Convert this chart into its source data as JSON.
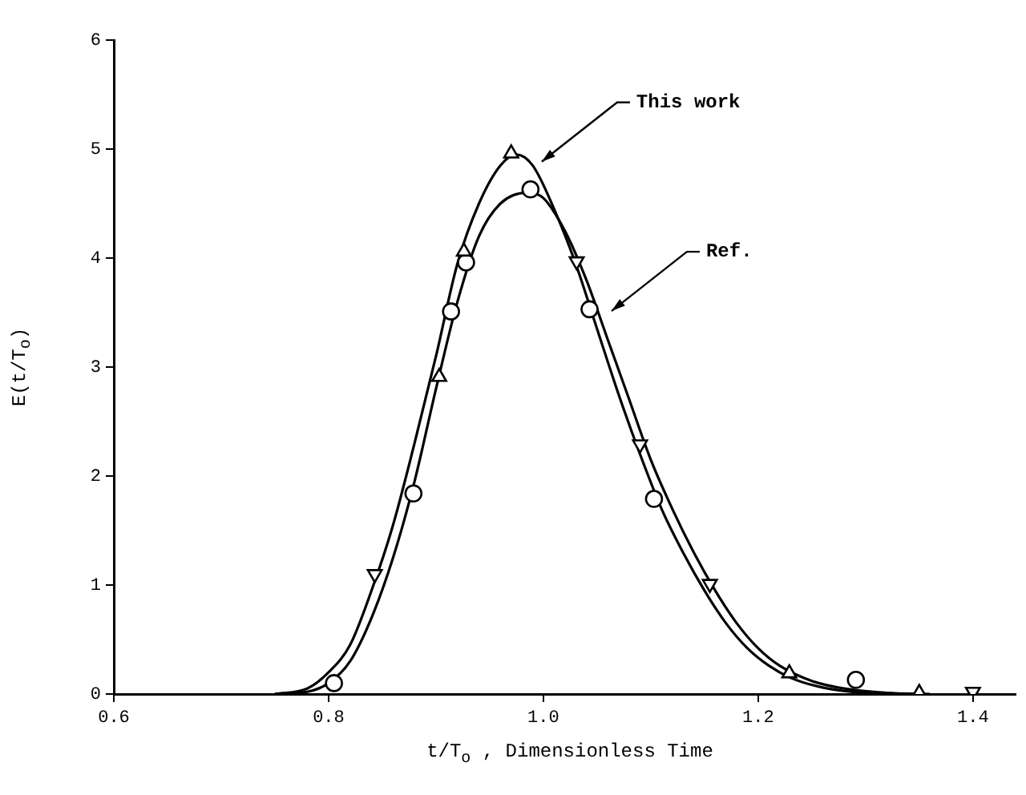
{
  "chart_data": {
    "type": "line",
    "xlabel": "t/T$_{o}$ , Dimensionless Time",
    "ylabel": "E(t/T$_{o}$)",
    "xlim": [
      0.6,
      1.44
    ],
    "xticks": [
      0.6,
      0.8,
      {
        "value": 1,
        "label": "1.0"
      },
      1.2,
      1.4
    ],
    "ylim": [
      0,
      6
    ],
    "yticks": [
      0,
      1,
      2,
      3,
      4,
      5,
      6
    ],
    "grid": false,
    "legend": false,
    "marker": "none",
    "line_style": "solid",
    "series": [
      {
        "type": "line",
        "color": "#000000",
        "x": [
          0.75,
          0.78,
          0.8,
          0.82,
          0.84,
          0.86,
          0.88,
          0.9,
          0.92,
          0.94,
          0.96,
          0.975,
          0.99,
          1.01,
          1.03,
          1.05,
          1.07,
          1.09,
          1.11,
          1.13,
          1.15,
          1.17,
          1.19,
          1.21,
          1.23,
          1.26,
          1.3,
          1.34
        ],
        "values": [
          0,
          0.05,
          0.2,
          0.45,
          0.95,
          1.55,
          2.3,
          3.1,
          3.95,
          4.5,
          4.85,
          4.95,
          4.85,
          4.45,
          3.95,
          3.35,
          2.75,
          2.2,
          1.7,
          1.3,
          0.95,
          0.65,
          0.42,
          0.26,
          0.15,
          0.06,
          0.01,
          0
        ]
      },
      {
        "type": "line",
        "color": "#000000",
        "x": [
          0.75,
          0.78,
          0.8,
          0.82,
          0.84,
          0.86,
          0.88,
          0.9,
          0.92,
          0.94,
          0.96,
          0.985,
          1.0,
          1.02,
          1.04,
          1.06,
          1.08,
          1.1,
          1.12,
          1.14,
          1.16,
          1.18,
          1.2,
          1.22,
          1.25,
          1.28,
          1.32,
          1.36
        ],
        "values": [
          0,
          0.02,
          0.1,
          0.3,
          0.7,
          1.25,
          1.95,
          2.8,
          3.6,
          4.2,
          4.5,
          4.6,
          4.55,
          4.25,
          3.8,
          3.25,
          2.7,
          2.15,
          1.7,
          1.3,
          0.95,
          0.65,
          0.42,
          0.26,
          0.12,
          0.05,
          0.01,
          0
        ]
      },
      {
        "type": "scatter",
        "color": "#000000",
        "marker": "triangle",
        "x": [
          0.903,
          0.926,
          0.97,
          1.229,
          1.35
        ],
        "values": [
          2.91,
          4.06,
          4.96,
          0.19,
          0.01
        ]
      },
      {
        "type": "scatter",
        "color": "#000000",
        "marker": "triangle-down",
        "x": [
          0.843,
          1.031,
          1.09,
          1.155,
          1.4
        ],
        "values": [
          1.1,
          3.97,
          2.29,
          1.01,
          0.02
        ]
      },
      {
        "type": "scatter",
        "color": "#000000",
        "marker": "circle",
        "x": [
          0.805,
          0.879,
          0.914,
          0.928,
          0.988,
          1.043,
          1.103,
          1.291
        ],
        "values": [
          0.1,
          1.84,
          3.51,
          3.96,
          4.63,
          3.53,
          1.79,
          0.13
        ]
      }
    ],
    "annotations": [
      {
        "text": "This work",
        "x": 0.994,
        "y": 4.84
      },
      {
        "text": "Ref.",
        "x": 1.059,
        "y": 3.47
      }
    ]
  }
}
